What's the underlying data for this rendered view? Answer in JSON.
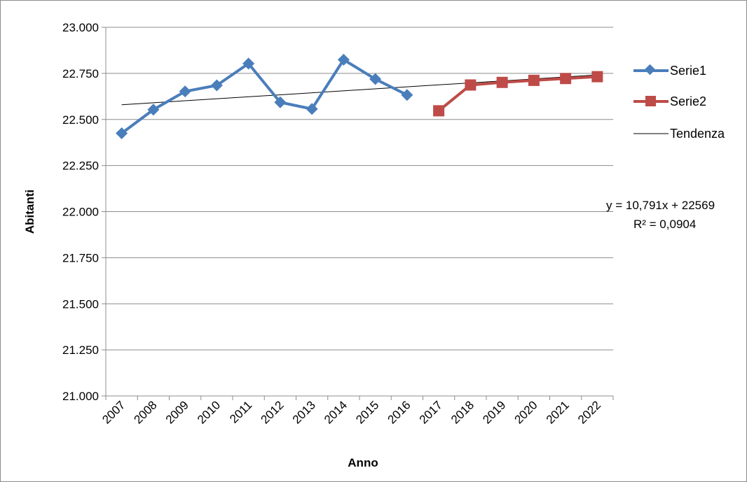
{
  "chart_data": {
    "type": "line",
    "title": "",
    "xlabel": "Anno",
    "ylabel": "Abitanti",
    "categories": [
      "2007",
      "2008",
      "2009",
      "2010",
      "2011",
      "2012",
      "2013",
      "2014",
      "2015",
      "2016",
      "2017",
      "2018",
      "2019",
      "2020",
      "2021",
      "2022"
    ],
    "yticks": [
      "21.000",
      "21.250",
      "21.500",
      "21.750",
      "22.000",
      "22.250",
      "22.500",
      "22.750",
      "23.000"
    ],
    "ylim": [
      21000,
      23000
    ],
    "grid": "horizontal",
    "legend_position": "right",
    "series": [
      {
        "name": "Serie1",
        "color": "#4a7ebb",
        "marker": "diamond",
        "values": [
          22425,
          22553,
          22652,
          22685,
          22803,
          22593,
          22557,
          22824,
          22719,
          22633,
          null,
          null,
          null,
          null,
          null,
          null
        ]
      },
      {
        "name": "Serie2",
        "color": "#be4b48",
        "marker": "square",
        "values": [
          null,
          null,
          null,
          null,
          null,
          null,
          null,
          null,
          null,
          null,
          22547,
          22687,
          22701,
          22712,
          22722,
          22732
        ]
      }
    ],
    "trendline": {
      "name": "Tendenza",
      "color": "#000000",
      "slope": 10.791,
      "intercept": 22569,
      "equation": "y = 10,791x + 22569",
      "r_squared": "R² = 0,0904"
    }
  }
}
